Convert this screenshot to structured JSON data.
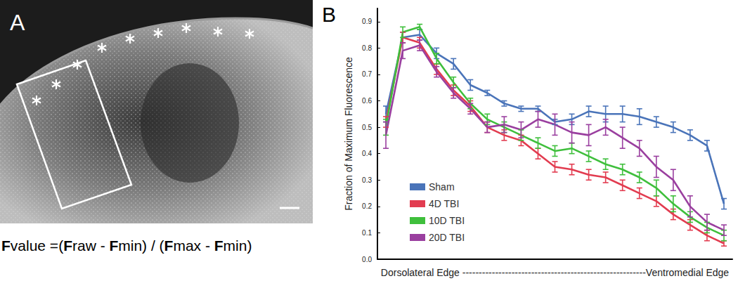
{
  "chart_data": {
    "type": "line",
    "ylabel": "Fraction of Maximum Fluorescence",
    "xlabel": "Dorsolateral Edge --------------------------------------------------------Ventromedial Edge",
    "categories": [
      null,
      null,
      null,
      null,
      null,
      null,
      null,
      null,
      null,
      null,
      null,
      null,
      null,
      null,
      null,
      null,
      null,
      null,
      null,
      null,
      null
    ],
    "series": [
      {
        "name": "Sham",
        "color": "#4a74b9",
        "values": [
          0.55,
          0.84,
          0.85,
          0.78,
          0.74,
          0.66,
          0.63,
          0.59,
          0.57,
          0.57,
          0.52,
          0.53,
          0.56,
          0.55,
          0.55,
          0.54,
          0.52,
          0.5,
          0.47,
          0.43,
          0.21
        ],
        "errors": [
          0.03,
          0.02,
          0.02,
          0.02,
          0.02,
          0.02,
          0.01,
          0.01,
          0.01,
          0.01,
          0.01,
          0.02,
          0.02,
          0.03,
          0.03,
          0.03,
          0.02,
          0.02,
          0.02,
          0.02,
          0.02
        ]
      },
      {
        "name": "4D TBI",
        "color": "#e23c50",
        "values": [
          0.52,
          0.84,
          0.82,
          0.72,
          0.64,
          0.58,
          0.5,
          0.47,
          0.45,
          0.4,
          0.35,
          0.34,
          0.32,
          0.31,
          0.28,
          0.25,
          0.22,
          0.17,
          0.13,
          0.09,
          0.06
        ],
        "errors": [
          0.02,
          0.02,
          0.02,
          0.02,
          0.02,
          0.02,
          0.02,
          0.02,
          0.02,
          0.02,
          0.02,
          0.02,
          0.02,
          0.02,
          0.02,
          0.02,
          0.02,
          0.02,
          0.02,
          0.02,
          0.01
        ]
      },
      {
        "name": "10D TBI",
        "color": "#3fbf3c",
        "values": [
          0.5,
          0.86,
          0.88,
          0.76,
          0.67,
          0.59,
          0.53,
          0.5,
          0.47,
          0.44,
          0.41,
          0.42,
          0.39,
          0.36,
          0.34,
          0.31,
          0.27,
          0.21,
          0.16,
          0.12,
          0.09
        ],
        "errors": [
          0.03,
          0.02,
          0.01,
          0.02,
          0.02,
          0.02,
          0.02,
          0.02,
          0.02,
          0.02,
          0.02,
          0.02,
          0.02,
          0.02,
          0.02,
          0.02,
          0.03,
          0.03,
          0.02,
          0.02,
          0.02
        ]
      },
      {
        "name": "20D TBI",
        "color": "#9a3f9f",
        "values": [
          0.47,
          0.79,
          0.81,
          0.71,
          0.63,
          0.57,
          0.5,
          0.51,
          0.49,
          0.53,
          0.51,
          0.48,
          0.47,
          0.5,
          0.46,
          0.42,
          0.35,
          0.3,
          0.2,
          0.14,
          0.11
        ],
        "errors": [
          0.05,
          0.03,
          0.02,
          0.02,
          0.02,
          0.02,
          0.02,
          0.03,
          0.03,
          0.03,
          0.04,
          0.04,
          0.04,
          0.03,
          0.04,
          0.03,
          0.04,
          0.04,
          0.04,
          0.03,
          0.02
        ]
      }
    ],
    "ylim": [
      0,
      0.95
    ],
    "yticks": [
      {
        "value": 0,
        "label": "0.0"
      },
      0.1,
      0.2,
      0.3,
      0.4,
      0.5,
      0.6,
      0.7,
      0.8,
      0.9
    ],
    "grid": false,
    "legend": "lower left",
    "marker": "none",
    "tick_labels": "y"
  },
  "figure": {
    "panel_a_label": "A",
    "panel_b_label": "B",
    "formula": "Fvalue =(Fraw - Fmin) / (Fmax - Fmin)"
  }
}
